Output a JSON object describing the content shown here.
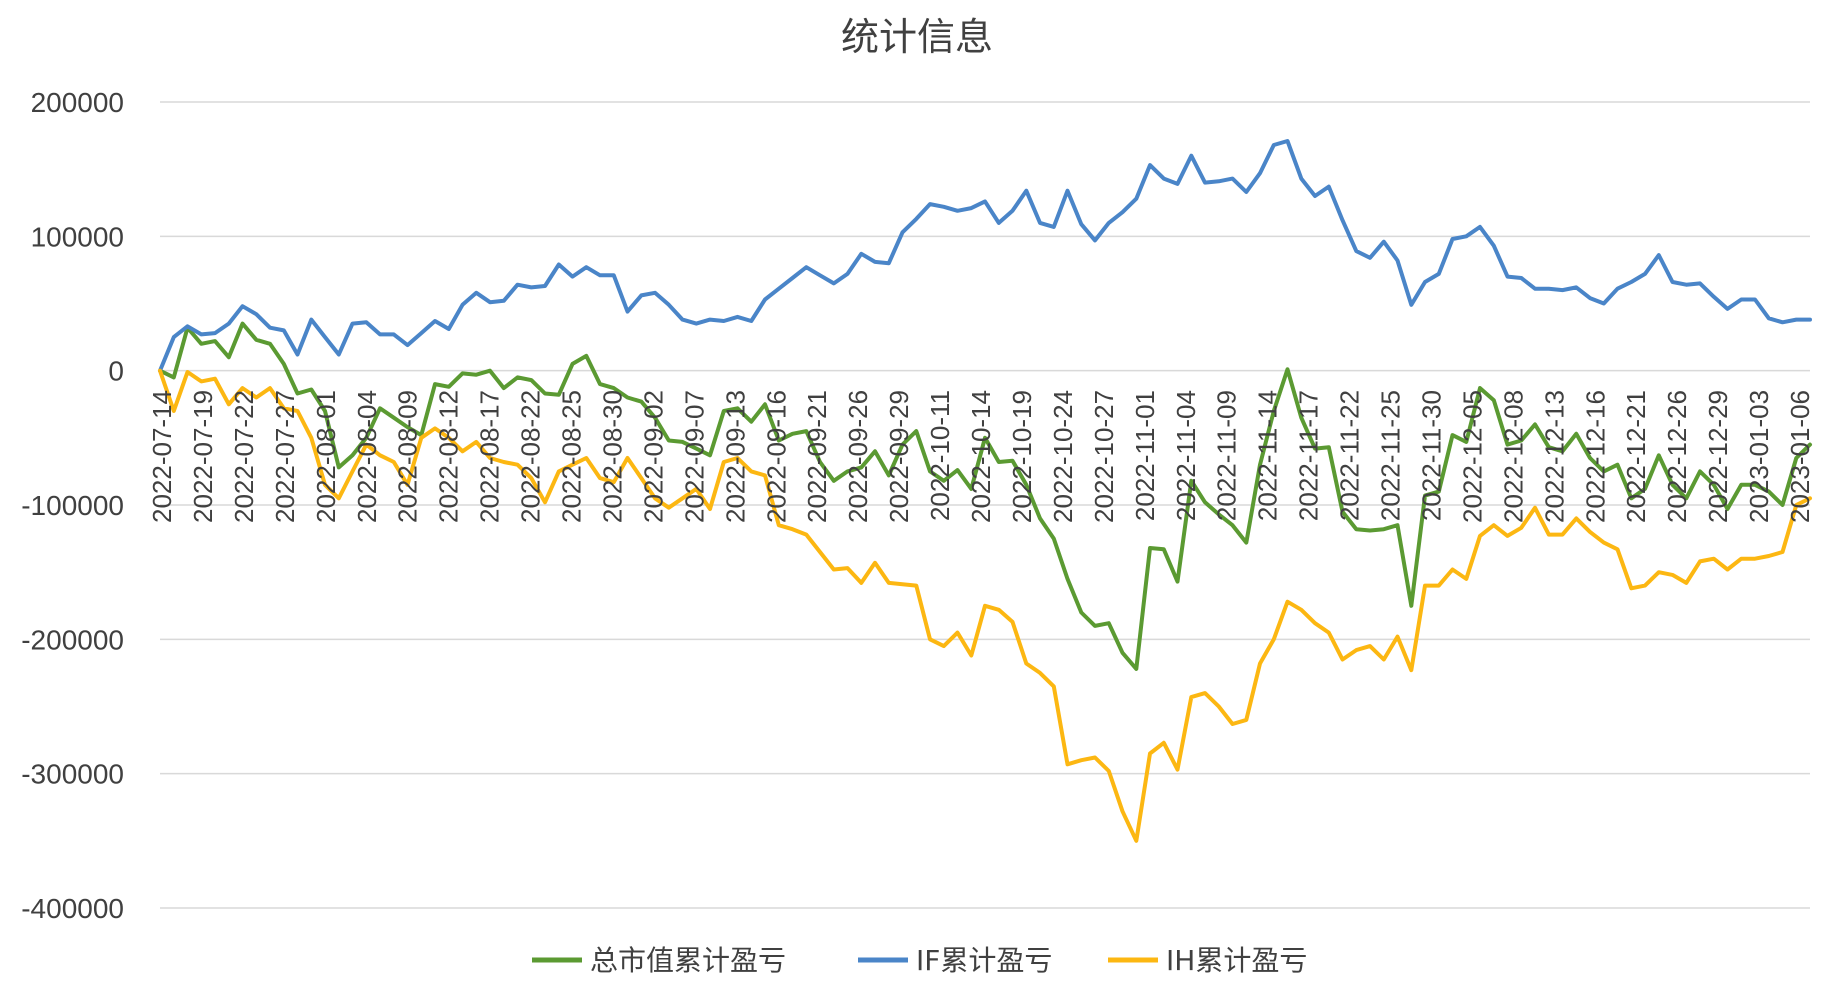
{
  "chart_data": {
    "type": "line",
    "title": "统计信息",
    "xlabel": "",
    "ylabel": "",
    "ylim": [
      -400000,
      200000
    ],
    "yticks": [
      200000,
      100000,
      0,
      -100000,
      -200000,
      -300000,
      -400000
    ],
    "ytick_labels": [
      "200000",
      "100000",
      "0",
      "-100000",
      "-200000",
      "-300000",
      "-400000"
    ],
    "grid": true,
    "legend_position": "bottom",
    "x_tick_labels": [
      "2022-07-14",
      "2022-07-19",
      "2022-07-22",
      "2022-07-27",
      "2022-08-01",
      "2022-08-04",
      "2022-08-09",
      "2022-08-12",
      "2022-08-17",
      "2022-08-22",
      "2022-08-25",
      "2022-08-30",
      "2022-09-02",
      "2022-09-07",
      "2022-09-13",
      "2022-09-16",
      "2022-09-21",
      "2022-09-26",
      "2022-09-29",
      "2022-10-11",
      "2022-10-14",
      "2022-10-19",
      "2022-10-24",
      "2022-10-27",
      "2022-11-01",
      "2022-11-04",
      "2022-11-09",
      "2022-11-14",
      "2022-11-17",
      "2022-11-22",
      "2022-11-25",
      "2022-11-30",
      "2022-12-05",
      "2022-12-08",
      "2022-12-13",
      "2022-12-16",
      "2022-12-21",
      "2022-12-26",
      "2022-12-29",
      "2023-01-03",
      "2023-01-06"
    ],
    "series": [
      {
        "name": "总市值累计盈亏",
        "color": "#5b9a32",
        "values": [
          0,
          -5000,
          32000,
          20000,
          22000,
          10000,
          35000,
          23000,
          20000,
          5000,
          -17000,
          -14000,
          -30000,
          -72000,
          -63000,
          -50000,
          -28000,
          -35000,
          -42000,
          -48000,
          -10000,
          -12000,
          -2000,
          -3000,
          0,
          -13000,
          -5000,
          -7000,
          -17000,
          -18000,
          5000,
          11000,
          -10000,
          -13000,
          -20000,
          -23000,
          -35000,
          -52000,
          -53000,
          -58000,
          -63000,
          -30000,
          -28000,
          -38000,
          -25000,
          -52000,
          -47000,
          -45000,
          -68000,
          -82000,
          -75000,
          -72000,
          -60000,
          -78000,
          -55000,
          -45000,
          -75000,
          -82000,
          -74000,
          -88000,
          -50000,
          -68000,
          -67000,
          -85000,
          -110000,
          -125000,
          -155000,
          -180000,
          -190000,
          -188000,
          -210000,
          -222000,
          -132000,
          -133000,
          -157000,
          -82000,
          -98000,
          -107000,
          -115000,
          -128000,
          -70000,
          -30000,
          1000,
          -35000,
          -58000,
          -57000,
          -105000,
          -118000,
          -119000,
          -118000,
          -115000,
          -175000,
          -93000,
          -90000,
          -48000,
          -53000,
          -13000,
          -22000,
          -55000,
          -52000,
          -40000,
          -57000,
          -60000,
          -47000,
          -65000,
          -75000,
          -70000,
          -95000,
          -88000,
          -63000,
          -85000,
          -95000,
          -75000,
          -85000,
          -103000,
          -85000,
          -85000,
          -90000,
          -100000,
          -65000,
          -55000
        ]
      },
      {
        "name": "IF累计盈亏",
        "color": "#4a85c8",
        "values": [
          0,
          25000,
          33000,
          27000,
          28000,
          35000,
          48000,
          42000,
          32000,
          30000,
          12000,
          38000,
          25000,
          12000,
          35000,
          36000,
          27000,
          27000,
          19000,
          28000,
          37000,
          31000,
          49000,
          58000,
          51000,
          52000,
          64000,
          62000,
          63000,
          79000,
          70000,
          77000,
          71000,
          71000,
          44000,
          56000,
          58000,
          49000,
          38000,
          35000,
          38000,
          37000,
          40000,
          37000,
          53000,
          61000,
          69000,
          77000,
          71000,
          65000,
          72000,
          87000,
          81000,
          80000,
          103000,
          113000,
          124000,
          122000,
          119000,
          121000,
          126000,
          110000,
          119000,
          134000,
          110000,
          107000,
          134000,
          109000,
          97000,
          110000,
          118000,
          128000,
          153000,
          143000,
          139000,
          160000,
          140000,
          141000,
          143000,
          133000,
          147000,
          168000,
          171000,
          143000,
          130000,
          137000,
          112000,
          89000,
          84000,
          96000,
          82000,
          49000,
          66000,
          72000,
          98000,
          100000,
          107000,
          93000,
          70000,
          69000,
          61000,
          61000,
          60000,
          62000,
          54000,
          50000,
          61000,
          66000,
          72000,
          86000,
          66000,
          64000,
          65000,
          55000,
          46000,
          53000,
          53000,
          39000,
          36000,
          38000,
          38000
        ]
      },
      {
        "name": "IH累计盈亏",
        "color": "#fcb712",
        "values": [
          0,
          -30000,
          -1000,
          -8000,
          -6000,
          -25000,
          -13000,
          -20000,
          -13000,
          -28000,
          -30000,
          -50000,
          -85000,
          -95000,
          -75000,
          -55000,
          -63000,
          -68000,
          -85000,
          -50000,
          -43000,
          -50000,
          -60000,
          -53000,
          -65000,
          -68000,
          -70000,
          -80000,
          -98000,
          -75000,
          -70000,
          -65000,
          -80000,
          -83000,
          -65000,
          -80000,
          -95000,
          -102000,
          -95000,
          -88000,
          -103000,
          -68000,
          -65000,
          -75000,
          -78000,
          -115000,
          -118000,
          -122000,
          -135000,
          -148000,
          -147000,
          -158000,
          -143000,
          -158000,
          -159000,
          -160000,
          -200000,
          -205000,
          -195000,
          -212000,
          -175000,
          -178000,
          -187000,
          -218000,
          -225000,
          -235000,
          -293000,
          -290000,
          -288000,
          -298000,
          -328000,
          -350000,
          -285000,
          -277000,
          -297000,
          -243000,
          -240000,
          -250000,
          -263000,
          -260000,
          -218000,
          -200000,
          -172000,
          -178000,
          -188000,
          -195000,
          -215000,
          -208000,
          -205000,
          -215000,
          -198000,
          -223000,
          -160000,
          -160000,
          -148000,
          -155000,
          -123000,
          -115000,
          -123000,
          -117000,
          -102000,
          -122000,
          -122000,
          -110000,
          -120000,
          -128000,
          -133000,
          -162000,
          -160000,
          -150000,
          -152000,
          -158000,
          -142000,
          -140000,
          -148000,
          -140000,
          -140000,
          -138000,
          -135000,
          -100000,
          -95000
        ]
      }
    ]
  }
}
